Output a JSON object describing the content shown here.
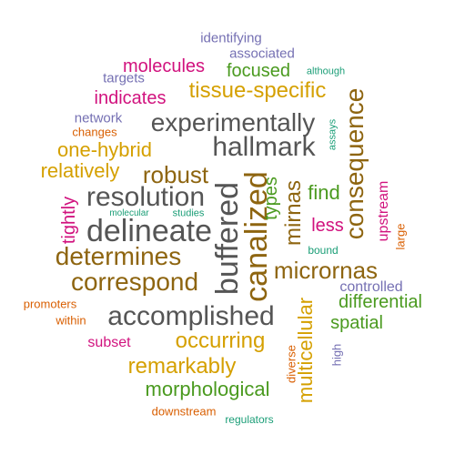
{
  "colors": {
    "purple": "#7570B3",
    "magenta": "#D1127E",
    "olive": "#B88A0B",
    "green": "#4A9A1F",
    "orange": "#D95F02",
    "teal": "#1B9E77",
    "gray": "#555555",
    "brown": "#8E6510",
    "gold": "#D5A000"
  },
  "words": {
    "identifying": "identifying",
    "associated": "associated",
    "molecules": "molecules",
    "targets": "targets",
    "focused": "focused",
    "although": "although",
    "indicates": "indicates",
    "tissue_specific": "tissue-specific",
    "network": "network",
    "experimentally": "experimentally",
    "changes": "changes",
    "assays": "assays",
    "one_hybrid": "one-hybrid",
    "hallmark": "hallmark",
    "consequence": "consequence",
    "relatively": "relatively",
    "robust": "robust",
    "buffered": "buffered",
    "canalized": "canalized",
    "types": "types",
    "mirnas": "mirnas",
    "find": "find",
    "resolution": "resolution",
    "tightly": "tightly",
    "molecular": "molecular",
    "studies": "studies",
    "delineate": "delineate",
    "less": "less",
    "upstream": "upstream",
    "large": "large",
    "determines": "determines",
    "bound": "bound",
    "micrornas": "micrornas",
    "correspond": "correspond",
    "controlled": "controlled",
    "differential": "differential",
    "promoters": "promoters",
    "multicellular": "multicellular",
    "within": "within",
    "accomplished": "accomplished",
    "spatial": "spatial",
    "subset": "subset",
    "occurring": "occurring",
    "diverse": "diverse",
    "high": "high",
    "remarkably": "remarkably",
    "morphological": "morphological",
    "downstream": "downstream",
    "regulators": "regulators"
  }
}
